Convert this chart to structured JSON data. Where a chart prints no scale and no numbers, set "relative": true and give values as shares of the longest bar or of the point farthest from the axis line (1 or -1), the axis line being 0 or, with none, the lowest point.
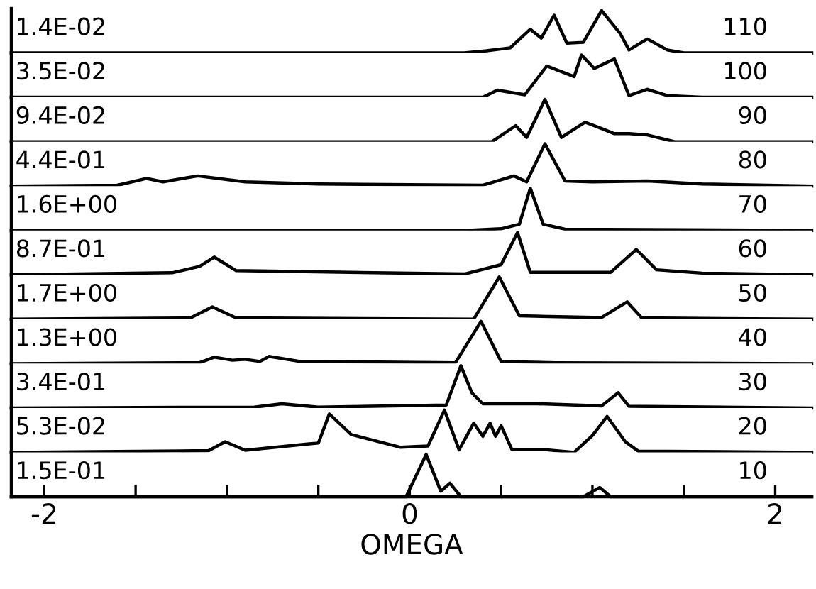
{
  "chart_data": [
    {
      "type": "line",
      "relative": true,
      "xlim": [
        -2.18,
        2.2
      ],
      "tick_labels": false,
      "annotations": [
        "1.4E-02",
        "110"
      ],
      "series": [
        {
          "color": "#000000",
          "x": [
            -2.18,
            0.3,
            0.42,
            0.55,
            0.66,
            0.72,
            0.79,
            0.86,
            0.95,
            1.05,
            1.15,
            1.2,
            1.3,
            1.41,
            1.5,
            2.2
          ],
          "values": [
            0,
            0,
            0.05,
            0.12,
            0.56,
            0.35,
            0.89,
            0.23,
            0.25,
            1.0,
            0.47,
            0.07,
            0.33,
            0.07,
            0,
            0
          ]
        }
      ]
    },
    {
      "type": "line",
      "relative": true,
      "xlim": [
        -2.18,
        2.2
      ],
      "tick_labels": false,
      "annotations": [
        "3.5E-02",
        "100"
      ],
      "series": [
        {
          "color": "#000000",
          "x": [
            -2.18,
            0.4,
            0.48,
            0.63,
            0.75,
            0.9,
            0.94,
            1.01,
            1.12,
            1.2,
            1.3,
            1.41,
            1.6,
            2.2
          ],
          "values": [
            0,
            0,
            0.17,
            0.06,
            0.74,
            0.49,
            1.0,
            0.68,
            0.91,
            0.04,
            0.19,
            0.04,
            0,
            0
          ]
        }
      ]
    },
    {
      "type": "line",
      "relative": true,
      "xlim": [
        -2.18,
        2.2
      ],
      "tick_labels": false,
      "annotations": [
        "9.4E-02",
        "90"
      ],
      "series": [
        {
          "color": "#000000",
          "x": [
            -2.18,
            0.45,
            0.58,
            0.64,
            0.74,
            0.83,
            0.96,
            1.05,
            1.12,
            1.2,
            1.3,
            1.45,
            2.2
          ],
          "values": [
            0,
            0,
            0.38,
            0.1,
            1.0,
            0.1,
            0.46,
            0.31,
            0.19,
            0.19,
            0.16,
            0,
            0
          ]
        }
      ]
    },
    {
      "type": "line",
      "relative": true,
      "xlim": [
        -2.18,
        2.2
      ],
      "tick_labels": false,
      "annotations": [
        "4.4E-01",
        "80"
      ],
      "series": [
        {
          "color": "#000000",
          "x": [
            -2.18,
            -1.6,
            -1.44,
            -1.35,
            -1.16,
            -0.9,
            -0.5,
            0.4,
            0.57,
            0.64,
            0.74,
            0.85,
            1.0,
            1.3,
            1.6,
            2.2
          ],
          "values": [
            0,
            0.02,
            0.18,
            0.1,
            0.24,
            0.1,
            0.05,
            0.02,
            0.24,
            0.1,
            1.0,
            0.12,
            0.1,
            0.12,
            0.05,
            0
          ]
        }
      ]
    },
    {
      "type": "line",
      "relative": true,
      "xlim": [
        -2.18,
        2.2
      ],
      "tick_labels": false,
      "annotations": [
        "1.6E+00",
        "70"
      ],
      "series": [
        {
          "color": "#000000",
          "x": [
            -2.18,
            0.3,
            0.5,
            0.6,
            0.66,
            0.73,
            0.85,
            2.2
          ],
          "values": [
            0,
            0,
            0.04,
            0.15,
            1.0,
            0.15,
            0.03,
            0
          ]
        }
      ]
    },
    {
      "type": "line",
      "relative": true,
      "xlim": [
        -2.18,
        2.2
      ],
      "tick_labels": false,
      "annotations": [
        "8.7E-01",
        "60"
      ],
      "series": [
        {
          "color": "#000000",
          "x": [
            -2.18,
            -1.3,
            -1.15,
            -1.07,
            -0.95,
            0.3,
            0.5,
            0.59,
            0.66,
            1.1,
            1.24,
            1.35,
            1.6,
            2.2
          ],
          "values": [
            0,
            0.05,
            0.2,
            0.42,
            0.1,
            0.02,
            0.24,
            1.0,
            0.06,
            0.06,
            0.6,
            0.12,
            0.04,
            0
          ]
        }
      ]
    },
    {
      "type": "line",
      "relative": true,
      "xlim": [
        -2.18,
        2.2
      ],
      "tick_labels": false,
      "annotations": [
        "1.7E+00",
        "50"
      ],
      "series": [
        {
          "color": "#000000",
          "x": [
            -2.18,
            -1.2,
            -1.08,
            -0.95,
            0.35,
            0.49,
            0.6,
            1.05,
            1.19,
            1.27,
            2.2
          ],
          "values": [
            0,
            0.03,
            0.29,
            0.03,
            0,
            1.0,
            0.08,
            0.04,
            0.41,
            0.03,
            0
          ]
        }
      ]
    },
    {
      "type": "line",
      "relative": true,
      "xlim": [
        -2.18,
        2.2
      ],
      "tick_labels": false,
      "annotations": [
        "1.3E+00",
        "40"
      ],
      "series": [
        {
          "color": "#000000",
          "x": [
            -2.18,
            -1.15,
            -1.07,
            -0.97,
            -0.9,
            -0.82,
            -0.77,
            -0.6,
            0.25,
            0.39,
            0.5,
            0.8,
            2.2
          ],
          "values": [
            0,
            0.02,
            0.15,
            0.08,
            0.1,
            0.05,
            0.17,
            0.05,
            0.02,
            1.0,
            0.05,
            0.02,
            0
          ]
        }
      ]
    },
    {
      "type": "line",
      "relative": true,
      "xlim": [
        -2.18,
        2.2
      ],
      "tick_labels": false,
      "annotations": [
        "3.4E-01",
        "30"
      ],
      "series": [
        {
          "color": "#000000",
          "x": [
            -2.18,
            -0.85,
            -0.7,
            -0.5,
            0.2,
            0.28,
            0.34,
            0.4,
            0.7,
            1.05,
            1.14,
            1.2,
            2.2
          ],
          "values": [
            0,
            0.02,
            0.1,
            0.02,
            0.07,
            1.0,
            0.36,
            0.1,
            0.1,
            0.05,
            0.36,
            0.04,
            0
          ]
        }
      ]
    },
    {
      "type": "line",
      "relative": true,
      "xlim": [
        -2.18,
        2.2
      ],
      "tick_labels": false,
      "annotations": [
        "5.3E-02",
        "20"
      ],
      "series": [
        {
          "color": "#000000",
          "x": [
            -2.18,
            -1.1,
            -1.01,
            -0.9,
            -0.55,
            -0.5,
            -0.44,
            -0.32,
            -0.05,
            0.1,
            0.19,
            0.27,
            0.35,
            0.4,
            0.44,
            0.47,
            0.5,
            0.56,
            0.75,
            0.9,
            1.0,
            1.08,
            1.18,
            1.25,
            2.2
          ],
          "values": [
            0,
            0.04,
            0.25,
            0.05,
            0.2,
            0.22,
            0.91,
            0.42,
            0.12,
            0.15,
            1.0,
            0.06,
            0.69,
            0.38,
            0.69,
            0.38,
            0.63,
            0.06,
            0.06,
            0,
            0.4,
            0.85,
            0.25,
            0.03,
            0
          ]
        }
      ]
    },
    {
      "type": "line",
      "relative": true,
      "xlim": [
        -2.18,
        2.2
      ],
      "xticks": [
        -2,
        {
          "value": -1.5,
          "label": null
        },
        {
          "value": -1,
          "label": null
        },
        {
          "value": -0.5,
          "label": null
        },
        0,
        {
          "value": 0.5,
          "label": null
        },
        {
          "value": 1,
          "label": null
        },
        {
          "value": 1.5,
          "label": null
        },
        2
      ],
      "tick_labels": "x",
      "xlabel": "OMEGA",
      "annotations": [
        "1.5E-01",
        "10"
      ],
      "series": [
        {
          "color": "#000000",
          "x": [
            -2.18,
            -0.02,
            0.09,
            0.17,
            0.22,
            0.28,
            0.95,
            1.04,
            1.1,
            2.2
          ],
          "values": [
            0,
            0,
            1.0,
            0.13,
            0.32,
            0,
            0,
            0.22,
            0,
            0
          ]
        }
      ]
    }
  ]
}
